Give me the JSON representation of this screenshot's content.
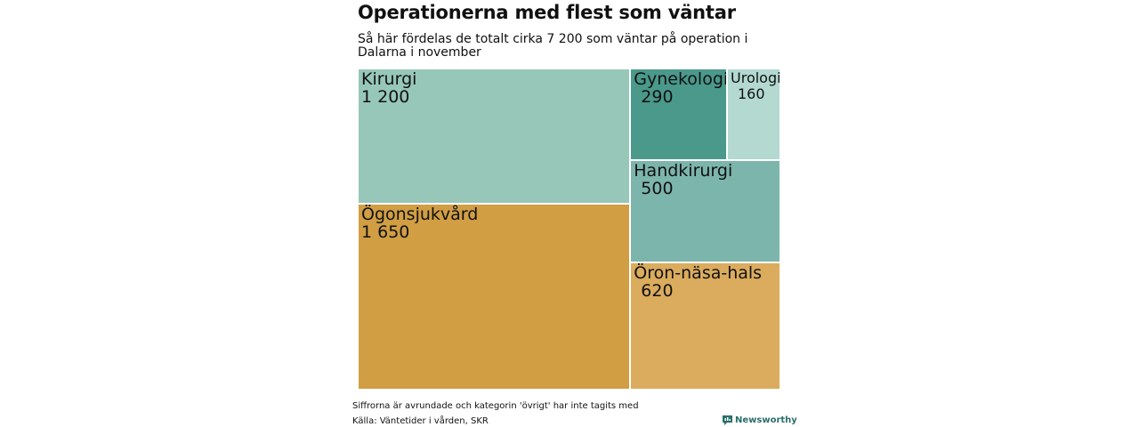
{
  "header": {
    "title": "Operationerna med flest som väntar",
    "subtitle": "Så här fördelas de totalt cirka 7 200 som väntar på operation i Dalarna i november"
  },
  "footer": {
    "note": "Siffrorna är avrundade och kategorin 'övrigt' har inte tagits med",
    "source": "Källa: Väntetider i vården, SKR",
    "brand": "Newsworthy"
  },
  "colors": {
    "kirurgi": "#97c7b9",
    "ogon": "#d19e44",
    "gynekologi": "#4a998b",
    "urologi": "#b3d9d1",
    "handkirurgi": "#7cb5ac",
    "oron": "#dbac5d",
    "brand": "#2a6f6a"
  },
  "chart_data": {
    "type": "treemap",
    "title": "Operationerna med flest som väntar",
    "subtitle": "Så här fördelas de totalt cirka 7 200 som väntar på operation i Dalarna i november",
    "items": [
      {
        "label": "Kirurgi",
        "value": 1200,
        "value_label": "1 200",
        "color": "#97c7b9"
      },
      {
        "label": "Ögonsjukvård",
        "value": 1650,
        "value_label": "1 650",
        "color": "#d19e44"
      },
      {
        "label": "Gynekologi",
        "value": 290,
        "value_label": "290",
        "color": "#4a998b"
      },
      {
        "label": "Urologi",
        "value": 160,
        "value_label": "160",
        "color": "#b3d9d1"
      },
      {
        "label": "Handkirurgi",
        "value": 500,
        "value_label": "500",
        "color": "#7cb5ac"
      },
      {
        "label": "Öron-näsa-hals",
        "value": 620,
        "value_label": "620",
        "color": "#dbac5d"
      }
    ]
  }
}
